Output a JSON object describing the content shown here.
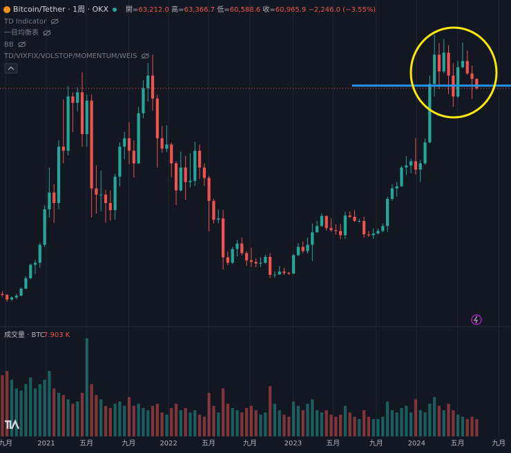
{
  "header": {
    "symbol": "Bitcoin/Tether · 1周 · OKX",
    "ohlc": [
      {
        "key": "開=",
        "value": "63,212.0"
      },
      {
        "key": "高=",
        "value": "63,366.7"
      },
      {
        "key": "低=",
        "value": "60,588.6"
      },
      {
        "key": "收=",
        "value": "60,965.9"
      }
    ],
    "change": "−2,246.0 (−3.55%)"
  },
  "indicators": [
    "TD Indicator",
    "一目均衡表",
    "BB",
    "TD/VIXFIX/VOLSTOP/MOMENTUM/WEIS"
  ],
  "chart_data": {
    "type": "candlestick",
    "up_color": "#26a69a",
    "down_color": "#ef5350",
    "xlim": [
      -0.5,
      108.3
    ],
    "ylim": [
      4400,
      82100
    ],
    "xticks": [
      {
        "value": 0.7,
        "label": "九月"
      },
      {
        "value": 9.35,
        "label": "2021"
      },
      {
        "value": 17.9,
        "label": "五月"
      },
      {
        "value": 26.9,
        "label": "九月"
      },
      {
        "value": 35.4,
        "label": "2022"
      },
      {
        "value": 43.9,
        "label": "五月"
      },
      {
        "value": 52.7,
        "label": "九月"
      },
      {
        "value": 61.9,
        "label": "2023"
      },
      {
        "value": 70.4,
        "label": "五月"
      },
      {
        "value": 79.6,
        "label": "九月"
      },
      {
        "value": 88.2,
        "label": "2024"
      },
      {
        "value": 96.9,
        "label": "五月"
      },
      {
        "value": 105.7,
        "label": "九月"
      }
    ],
    "ohlc": [
      [
        11700,
        12400,
        11100,
        11500
      ],
      [
        11500,
        11700,
        9900,
        10400
      ],
      [
        10400,
        11200,
        10100,
        10900
      ],
      [
        10900,
        11700,
        10500,
        11300
      ],
      [
        11300,
        13300,
        11200,
        13000
      ],
      [
        13000,
        16000,
        12900,
        15500
      ],
      [
        15500,
        19000,
        15200,
        18700
      ],
      [
        18700,
        19900,
        16500,
        19200
      ],
      [
        19200,
        24000,
        18000,
        23500
      ],
      [
        23500,
        33000,
        23000,
        32000
      ],
      [
        32000,
        42000,
        30000,
        36000
      ],
      [
        36000,
        38000,
        28800,
        33500
      ],
      [
        33500,
        48500,
        32000,
        47000
      ],
      [
        47000,
        58300,
        43000,
        46000
      ],
      [
        46000,
        61500,
        44900,
        59000
      ],
      [
        59000,
        60000,
        50500,
        57500
      ],
      [
        57500,
        61200,
        55500,
        60000
      ],
      [
        60000,
        64800,
        47000,
        50000
      ],
      [
        50000,
        59500,
        47000,
        58000
      ],
      [
        58000,
        59500,
        30000,
        37000
      ],
      [
        37000,
        42500,
        31000,
        35500
      ],
      [
        35500,
        41300,
        31500,
        35500
      ],
      [
        35500,
        36600,
        28800,
        33500
      ],
      [
        33500,
        36500,
        29300,
        31800
      ],
      [
        31800,
        40500,
        29500,
        39800
      ],
      [
        39800,
        48000,
        37500,
        47000
      ],
      [
        47000,
        50500,
        44000,
        49000
      ],
      [
        49000,
        52900,
        42800,
        46000
      ],
      [
        46000,
        48500,
        39600,
        43000
      ],
      [
        43000,
        56500,
        42800,
        55000
      ],
      [
        55000,
        62900,
        53800,
        61000
      ],
      [
        61000,
        67000,
        57800,
        64000
      ],
      [
        64000,
        69000,
        55600,
        58500
      ],
      [
        58500,
        59400,
        42000,
        49000
      ],
      [
        49000,
        51900,
        45500,
        46500
      ],
      [
        46500,
        52100,
        45700,
        47500
      ],
      [
        47500,
        48000,
        39700,
        43000
      ],
      [
        43000,
        43500,
        33000,
        36500
      ],
      [
        36500,
        45800,
        36300,
        42000
      ],
      [
        42000,
        44800,
        34300,
        38500
      ],
      [
        38500,
        45400,
        37200,
        38800
      ],
      [
        38800,
        48200,
        37600,
        46000
      ],
      [
        46000,
        47500,
        39200,
        42000
      ],
      [
        42000,
        43000,
        37600,
        39500
      ],
      [
        39500,
        40000,
        26700,
        34000
      ],
      [
        34000,
        34500,
        28600,
        29500
      ],
      [
        29500,
        31900,
        28600,
        29800
      ],
      [
        29800,
        31800,
        17600,
        20500
      ],
      [
        20500,
        21900,
        18600,
        19200
      ],
      [
        19200,
        23000,
        18900,
        22500
      ],
      [
        22500,
        24700,
        20700,
        23800
      ],
      [
        23800,
        25200,
        21000,
        21500
      ],
      [
        21500,
        22000,
        18500,
        19800
      ],
      [
        19800,
        22800,
        18200,
        19400
      ],
      [
        19400,
        20300,
        18100,
        19000
      ],
      [
        19000,
        20500,
        18200,
        19200
      ],
      [
        19200,
        21100,
        18900,
        20600
      ],
      [
        20600,
        21500,
        15500,
        16300
      ],
      [
        16300,
        17200,
        15600,
        16400
      ],
      [
        16400,
        18400,
        16300,
        17100
      ],
      [
        17100,
        18000,
        16300,
        16800
      ],
      [
        16800,
        17000,
        16300,
        16600
      ],
      [
        16600,
        21300,
        16500,
        21000
      ],
      [
        21000,
        23900,
        20800,
        23000
      ],
      [
        23000,
        24300,
        21500,
        22000
      ],
      [
        22000,
        25200,
        21400,
        23500
      ],
      [
        23500,
        28600,
        19600,
        26500
      ],
      [
        26500,
        29200,
        26400,
        28000
      ],
      [
        28000,
        31000,
        27800,
        30400
      ],
      [
        30400,
        30500,
        26900,
        27500
      ],
      [
        27500,
        29800,
        26600,
        27000
      ],
      [
        27000,
        28400,
        25900,
        26800
      ],
      [
        26800,
        28500,
        24800,
        25800
      ],
      [
        25800,
        31400,
        24900,
        30500
      ],
      [
        30500,
        31500,
        29900,
        30200
      ],
      [
        30200,
        31800,
        29000,
        29200
      ],
      [
        29200,
        29700,
        28800,
        29200
      ],
      [
        29200,
        30200,
        25200,
        26000
      ],
      [
        26000,
        26800,
        25400,
        25800
      ],
      [
        25800,
        27400,
        24900,
        26200
      ],
      [
        26200,
        27400,
        26000,
        26800
      ],
      [
        26800,
        28600,
        26500,
        28000
      ],
      [
        28000,
        35000,
        26600,
        34500
      ],
      [
        34500,
        38000,
        34000,
        37000
      ],
      [
        37000,
        38500,
        35000,
        37500
      ],
      [
        37500,
        42400,
        37400,
        42000
      ],
      [
        42000,
        44700,
        40200,
        42500
      ],
      [
        42500,
        44200,
        40600,
        43500
      ],
      [
        43500,
        49000,
        40300,
        41500
      ],
      [
        41500,
        43800,
        38500,
        43000
      ],
      [
        43000,
        48900,
        42600,
        48000
      ],
      [
        48000,
        64000,
        47800,
        62000
      ],
      [
        62000,
        73800,
        59000,
        69000
      ],
      [
        69000,
        71800,
        60800,
        65000
      ],
      [
        65000,
        72800,
        64500,
        69500
      ],
      [
        69500,
        71300,
        59600,
        64000
      ],
      [
        64000,
        67000,
        56500,
        59000
      ],
      [
        59000,
        67500,
        58600,
        66000
      ],
      [
        66000,
        71900,
        65800,
        67500
      ],
      [
        67500,
        70000,
        64200,
        64500
      ],
      [
        64500,
        66400,
        58400,
        63212
      ],
      [
        63212,
        63366.7,
        60588.6,
        60965.9
      ]
    ],
    "volume": {
      "name": "成交量 · BTC",
      "last_label": "7.903 K",
      "ylim": [
        0,
        50000
      ],
      "values": [
        28000,
        30000,
        26000,
        22000,
        21000,
        24000,
        27000,
        22000,
        24000,
        26000,
        30000,
        22000,
        20000,
        19000,
        17000,
        15000,
        16000,
        20000,
        45000,
        24000,
        19000,
        17000,
        14000,
        13000,
        15000,
        16000,
        14000,
        18000,
        14000,
        15000,
        13000,
        12000,
        14000,
        15000,
        11000,
        10000,
        13000,
        15000,
        12000,
        13000,
        11000,
        12000,
        10000,
        9000,
        20000,
        14000,
        11000,
        22000,
        15000,
        13000,
        12000,
        11000,
        13000,
        14000,
        12000,
        10000,
        11000,
        23000,
        15000,
        12000,
        10000,
        9000,
        16000,
        14000,
        12000,
        15000,
        17000,
        12000,
        11000,
        12000,
        10000,
        9000,
        10000,
        14000,
        11000,
        9000,
        8000,
        12000,
        9000,
        8000,
        8000,
        9000,
        16000,
        12000,
        11000,
        13000,
        14000,
        11000,
        17000,
        12000,
        11000,
        15000,
        18000,
        14000,
        12000,
        15000,
        12000,
        10000,
        9000,
        8000,
        9000,
        7903
      ]
    }
  }
}
